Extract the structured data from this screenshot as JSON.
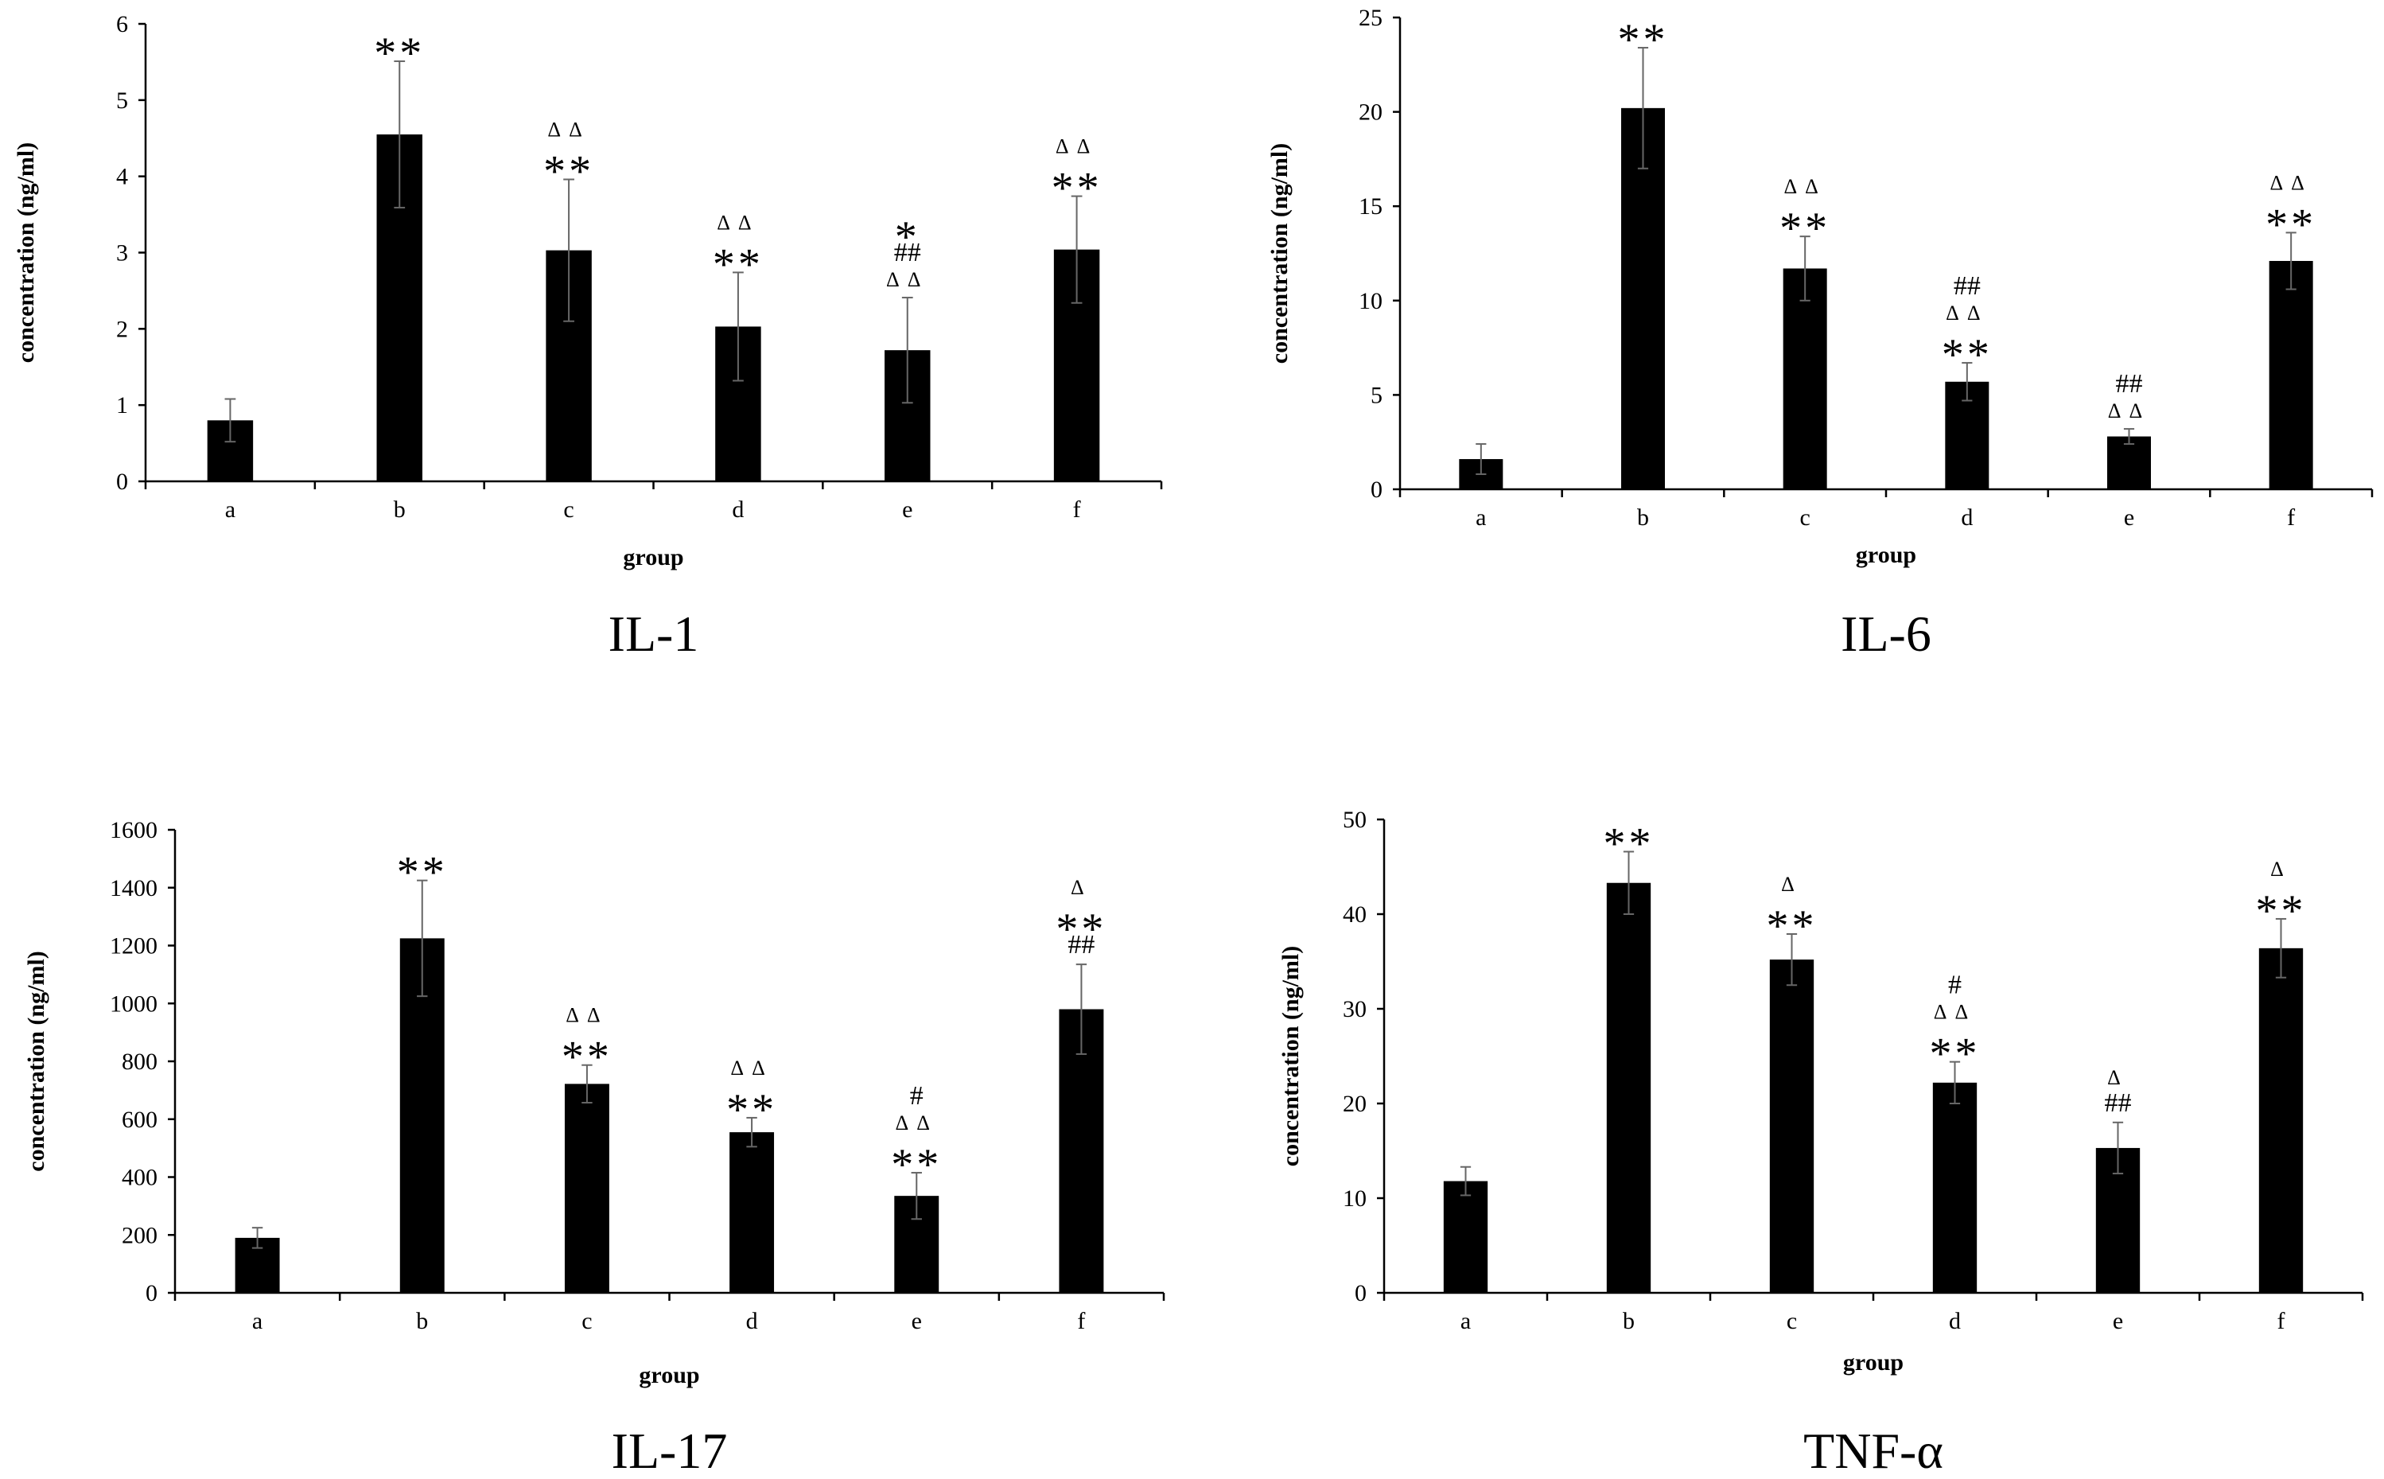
{
  "chart_data": [
    {
      "type": "bar",
      "title": "IL-1",
      "xlabel": "group",
      "ylabel": "concentration (ng/ml)",
      "categories": [
        "a",
        "b",
        "c",
        "d",
        "e",
        "f"
      ],
      "values": [
        0.8,
        4.55,
        3.03,
        2.03,
        1.72,
        3.04
      ],
      "errors": [
        0.28,
        0.96,
        0.93,
        0.71,
        0.69,
        0.7
      ],
      "ylim": [
        0,
        6
      ],
      "yticks": [
        0,
        1,
        2,
        3,
        4,
        5,
        6
      ],
      "annotations": [
        [],
        [
          "**"
        ],
        [
          "ΔΔ",
          "**"
        ],
        [
          "ΔΔ",
          "**"
        ],
        [
          "*",
          "##",
          "ΔΔ"
        ],
        [
          "ΔΔ",
          "**"
        ]
      ]
    },
    {
      "type": "bar",
      "title": "IL-6",
      "xlabel": "group",
      "ylabel": "concentration (ng/ml)",
      "categories": [
        "a",
        "b",
        "c",
        "d",
        "e",
        "f"
      ],
      "values": [
        1.6,
        20.2,
        11.7,
        5.7,
        2.8,
        12.1
      ],
      "errors": [
        0.8,
        3.2,
        1.7,
        1.0,
        0.4,
        1.5
      ],
      "ylim": [
        0,
        25
      ],
      "yticks": [
        0,
        5,
        10,
        15,
        20,
        25
      ],
      "annotations": [
        [],
        [
          "**"
        ],
        [
          "ΔΔ",
          "**"
        ],
        [
          "##",
          "ΔΔ",
          "**"
        ],
        [
          "##",
          "ΔΔ"
        ],
        [
          "ΔΔ",
          "**"
        ]
      ]
    },
    {
      "type": "bar",
      "title": "IL-17",
      "xlabel": "group",
      "ylabel": "concentration (ng/ml)",
      "categories": [
        "a",
        "b",
        "c",
        "d",
        "e",
        "f"
      ],
      "values": [
        190,
        1225,
        722,
        555,
        335,
        980
      ],
      "errors": [
        35,
        200,
        65,
        50,
        80,
        155
      ],
      "ylim": [
        0,
        1600
      ],
      "yticks": [
        0,
        200,
        400,
        600,
        800,
        1000,
        1200,
        1400,
        1600
      ],
      "annotations": [
        [],
        [
          "**"
        ],
        [
          "ΔΔ",
          "**"
        ],
        [
          "ΔΔ",
          "**"
        ],
        [
          "#",
          "ΔΔ",
          "**"
        ],
        [
          "Δ",
          "**",
          "##"
        ]
      ]
    },
    {
      "type": "bar",
      "title": "TNF-α",
      "xlabel": "group",
      "ylabel": "concentration (ng/ml)",
      "categories": [
        "a",
        "b",
        "c",
        "d",
        "e",
        "f"
      ],
      "values": [
        11.8,
        43.3,
        35.2,
        22.2,
        15.3,
        36.4
      ],
      "errors": [
        1.5,
        3.3,
        2.7,
        2.2,
        2.7,
        3.1
      ],
      "ylim": [
        0,
        50
      ],
      "yticks": [
        0,
        10,
        20,
        30,
        40,
        50
      ],
      "annotations": [
        [],
        [
          "**"
        ],
        [
          "Δ",
          "**"
        ],
        [
          "#",
          "ΔΔ",
          "**"
        ],
        [
          "Δ",
          "##"
        ],
        [
          "Δ",
          "**"
        ]
      ]
    }
  ]
}
